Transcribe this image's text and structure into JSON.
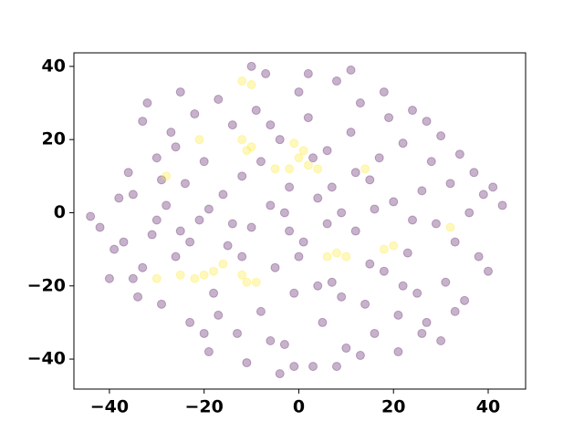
{
  "chart_data": {
    "type": "scatter",
    "xlim": [
      -47.5,
      47.9
    ],
    "ylim": [
      -48.2,
      43.7
    ],
    "xticks": [
      {
        "value": -40,
        "label": "−40"
      },
      {
        "value": -20,
        "label": "−20"
      },
      0,
      20,
      40
    ],
    "yticks": [
      {
        "value": -40,
        "label": "−40"
      },
      {
        "value": -20,
        "label": "−20"
      },
      0,
      20,
      40
    ],
    "grid": false,
    "alpha": 0.3,
    "series": [
      {
        "color": "#440154",
        "x": [
          -44,
          -42,
          -39,
          -38,
          -36,
          -35,
          -34,
          -33,
          -32,
          -31,
          -30,
          -29,
          -28,
          -27,
          -26,
          -25,
          -24,
          -23,
          -22,
          -21,
          -20,
          -19,
          -18,
          -17,
          -16,
          -15,
          -14,
          -13,
          -12,
          -11,
          -10,
          -9,
          -8,
          -7,
          -6,
          -5,
          -4,
          -3,
          -2,
          -1,
          0,
          1,
          2,
          3,
          4,
          5,
          6,
          7,
          8,
          9,
          10,
          11,
          12,
          13,
          14,
          15,
          16,
          17,
          18,
          19,
          20,
          21,
          22,
          23,
          24,
          25,
          26,
          27,
          28,
          29,
          30,
          31,
          32,
          33,
          34,
          35,
          36,
          37,
          38,
          39,
          40,
          41,
          43,
          -37,
          -33,
          -29,
          -26,
          -23,
          -19,
          -17,
          -14,
          -8,
          -6,
          -3,
          0,
          3,
          6,
          9,
          12,
          15,
          18,
          21,
          24,
          27,
          30,
          -40,
          -35,
          -10,
          11,
          2,
          -4,
          -1,
          8,
          13,
          26,
          33,
          -20,
          -25,
          -6,
          4,
          -2,
          7,
          -12,
          16,
          -30,
          22
        ],
        "y": [
          -1,
          -4,
          -10,
          4,
          11,
          -18,
          -23,
          25,
          30,
          -6,
          15,
          -25,
          2,
          22,
          -12,
          33,
          8,
          -30,
          27,
          -2,
          14,
          -38,
          -22,
          31,
          5,
          -9,
          24,
          -33,
          10,
          -41,
          -4,
          28,
          -27,
          38,
          2,
          -15,
          20,
          -36,
          7,
          -22,
          33,
          -8,
          26,
          -42,
          4,
          -30,
          17,
          -19,
          36,
          0,
          -37,
          22,
          -5,
          30,
          -25,
          9,
          -33,
          15,
          -16,
          26,
          3,
          -28,
          19,
          -11,
          28,
          -22,
          6,
          -30,
          14,
          -3,
          21,
          -19,
          8,
          -8,
          16,
          -24,
          0,
          11,
          -12,
          5,
          -16,
          7,
          2,
          -8,
          -15,
          9,
          18,
          -8,
          1,
          -28,
          -3,
          14,
          -35,
          0,
          -12,
          15,
          -3,
          -23,
          11,
          -14,
          33,
          -38,
          -2,
          25,
          -35,
          -18,
          5,
          40,
          39,
          38,
          -44,
          -42,
          -42,
          -39,
          -33,
          -27,
          -33,
          -5,
          24,
          -20,
          -5,
          7,
          -12,
          1,
          -2,
          -20
        ]
      },
      {
        "color": "#fde725",
        "x": [
          -10,
          -11,
          -12,
          0,
          2,
          -2,
          4,
          -5,
          1,
          -1,
          -20,
          -22,
          -18,
          -16,
          -11,
          -9,
          -12,
          8,
          6,
          10,
          20,
          32,
          -28,
          -30,
          -12,
          -10,
          -21,
          14,
          18,
          -25
        ],
        "y": [
          18,
          17,
          20,
          15,
          13,
          12,
          12,
          12,
          17,
          19,
          -17,
          -18,
          -16,
          -14,
          -19,
          -19,
          -17,
          -11,
          -12,
          -12,
          -9,
          -4,
          10,
          -18,
          36,
          35,
          20,
          12,
          -10,
          -17
        ]
      }
    ]
  }
}
